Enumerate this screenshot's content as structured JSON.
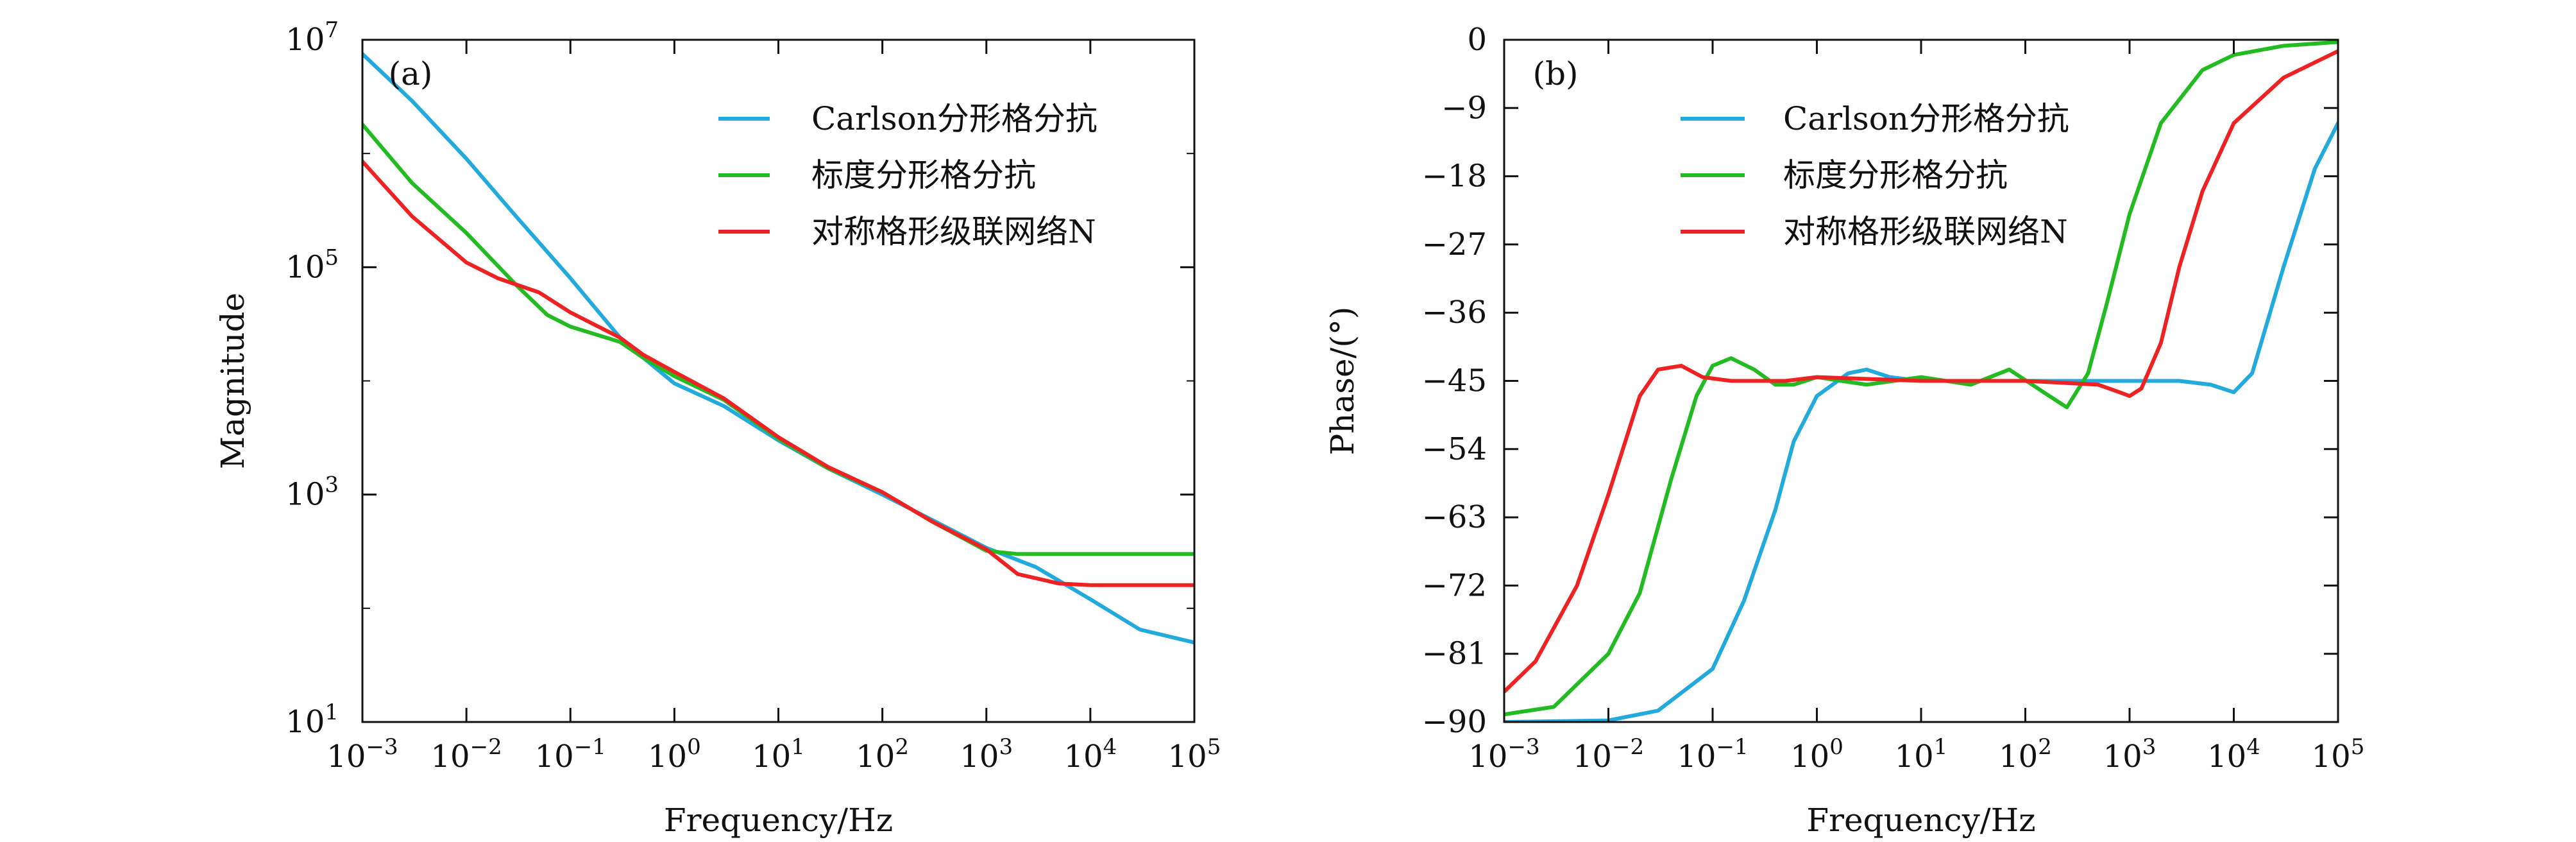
{
  "chart_data": [
    {
      "type": "line",
      "panel_label": "(a)",
      "xlabel": "Frequency/Hz",
      "ylabel": "Magnitude",
      "xscale": "log",
      "yscale": "log",
      "xlim": [
        0.001,
        100000
      ],
      "ylim": [
        10,
        10000000
      ],
      "x_ticks": [
        {
          "value": 0.001,
          "base": "10",
          "exp": "−3"
        },
        {
          "value": 0.01,
          "base": "10",
          "exp": "−2"
        },
        {
          "value": 0.1,
          "base": "10",
          "exp": "−1"
        },
        {
          "value": 1,
          "base": "10",
          "exp": "0"
        },
        {
          "value": 10,
          "base": "10",
          "exp": "1"
        },
        {
          "value": 100,
          "base": "10",
          "exp": "2"
        },
        {
          "value": 1000,
          "base": "10",
          "exp": "3"
        },
        {
          "value": 10000,
          "base": "10",
          "exp": "4"
        },
        {
          "value": 100000,
          "base": "10",
          "exp": "5"
        }
      ],
      "y_ticks": [
        {
          "value": 10,
          "base": "10",
          "exp": "1"
        },
        {
          "value": 1000,
          "base": "10",
          "exp": "3"
        },
        {
          "value": 100000,
          "base": "10",
          "exp": "5"
        },
        {
          "value": 10000000,
          "base": "10",
          "exp": "7"
        }
      ],
      "y_minor_ticks": [
        100,
        10000,
        1000000
      ],
      "legend_position": "top-right",
      "series": [
        {
          "name": "Carlson分形格分抗",
          "color": "#22aadd",
          "x": [
            0.001,
            0.003,
            0.01,
            0.03,
            0.1,
            0.3,
            0.5,
            1,
            3,
            10,
            30,
            100,
            300,
            1000,
            3000,
            10000,
            30000,
            100000
          ],
          "y": [
            7500000,
            2900000,
            900000,
            280000,
            80000,
            24000,
            16000,
            9500,
            6000,
            3000,
            1700,
            1000,
            600,
            340,
            230,
            120,
            65,
            50
          ]
        },
        {
          "name": "标度分形格分抗",
          "color": "#22bb22",
          "x": [
            0.001,
            0.003,
            0.01,
            0.03,
            0.06,
            0.1,
            0.3,
            0.5,
            1,
            3,
            10,
            30,
            100,
            300,
            1000,
            2000,
            10000,
            100000
          ],
          "y": [
            1800000,
            550000,
            200000,
            70000,
            38000,
            30000,
            22000,
            16000,
            11000,
            6800,
            3100,
            1700,
            1050,
            580,
            320,
            300,
            300,
            300
          ]
        },
        {
          "name": "对称格形级联网络N",
          "color": "#ee2222",
          "x": [
            0.001,
            0.003,
            0.01,
            0.02,
            0.05,
            0.1,
            0.3,
            0.5,
            1,
            3,
            10,
            30,
            100,
            300,
            1000,
            2000,
            5000,
            10000,
            100000
          ],
          "y": [
            850000,
            280000,
            110000,
            80000,
            60000,
            40000,
            24000,
            17000,
            12000,
            7000,
            3200,
            1750,
            1050,
            580,
            330,
            200,
            165,
            160,
            160
          ]
        }
      ]
    },
    {
      "type": "line",
      "panel_label": "(b)",
      "xlabel": "Frequency/Hz",
      "ylabel": "Phase/(°)",
      "xscale": "log",
      "xlim": [
        0.001,
        100000
      ],
      "ylim": [
        -90,
        0
      ],
      "x_ticks": [
        {
          "value": 0.001,
          "base": "10",
          "exp": "−3"
        },
        {
          "value": 0.01,
          "base": "10",
          "exp": "−2"
        },
        {
          "value": 0.1,
          "base": "10",
          "exp": "−1"
        },
        {
          "value": 1,
          "base": "10",
          "exp": "0"
        },
        {
          "value": 10,
          "base": "10",
          "exp": "1"
        },
        {
          "value": 100,
          "base": "10",
          "exp": "2"
        },
        {
          "value": 1000,
          "base": "10",
          "exp": "3"
        },
        {
          "value": 10000,
          "base": "10",
          "exp": "4"
        },
        {
          "value": 100000,
          "base": "10",
          "exp": "5"
        }
      ],
      "y_ticks": [
        {
          "value": 0,
          "label": "0"
        },
        {
          "value": -9,
          "label": "−9"
        },
        {
          "value": -18,
          "label": "−18"
        },
        {
          "value": -27,
          "label": "−27"
        },
        {
          "value": -36,
          "label": "−36"
        },
        {
          "value": -45,
          "label": "−45"
        },
        {
          "value": -54,
          "label": "−54"
        },
        {
          "value": -63,
          "label": "−63"
        },
        {
          "value": -72,
          "label": "−72"
        },
        {
          "value": -81,
          "label": "−81"
        },
        {
          "value": -90,
          "label": "−90"
        }
      ],
      "legend_position": "top-center",
      "series": [
        {
          "name": "Carlson分形格分抗",
          "color": "#22aadd",
          "x": [
            0.001,
            0.01,
            0.03,
            0.1,
            0.2,
            0.4,
            0.6,
            1,
            2,
            3,
            5,
            10,
            100,
            1000,
            3000,
            6000,
            10000,
            15000,
            30000,
            60000,
            100000
          ],
          "y": [
            -90,
            -89.8,
            -88.5,
            -83,
            -74,
            -62,
            -53,
            -47,
            -44,
            -43.5,
            -44.5,
            -45,
            -45,
            -45,
            -45,
            -45.5,
            -46.5,
            -44,
            -30,
            -17,
            -11
          ]
        },
        {
          "name": "标度分形格分抗",
          "color": "#22bb22",
          "x": [
            0.001,
            0.003,
            0.01,
            0.02,
            0.04,
            0.07,
            0.1,
            0.15,
            0.25,
            0.4,
            0.6,
            1,
            3,
            10,
            30,
            70,
            150,
            250,
            400,
            600,
            1000,
            2000,
            5000,
            10000,
            30000,
            100000
          ],
          "y": [
            -89,
            -88,
            -81,
            -73,
            -58,
            -47,
            -43,
            -42,
            -43.5,
            -45.5,
            -45.5,
            -44.5,
            -45.5,
            -44.5,
            -45.5,
            -43.5,
            -46.5,
            -48.5,
            -44,
            -35,
            -23,
            -11,
            -4,
            -2,
            -0.8,
            -0.3
          ]
        },
        {
          "name": "对称格形级联网络N",
          "color": "#ee2222",
          "x": [
            0.001,
            0.002,
            0.005,
            0.01,
            0.02,
            0.03,
            0.05,
            0.08,
            0.15,
            0.5,
            1,
            10,
            100,
            500,
            800,
            1000,
            1300,
            2000,
            3000,
            5000,
            10000,
            30000,
            100000
          ],
          "y": [
            -86,
            -82,
            -72,
            -60,
            -47,
            -43.5,
            -43,
            -44.5,
            -45,
            -45,
            -44.5,
            -45,
            -45,
            -45.5,
            -46.5,
            -47,
            -46,
            -40,
            -30,
            -20,
            -11,
            -5,
            -1.5
          ]
        }
      ]
    }
  ]
}
